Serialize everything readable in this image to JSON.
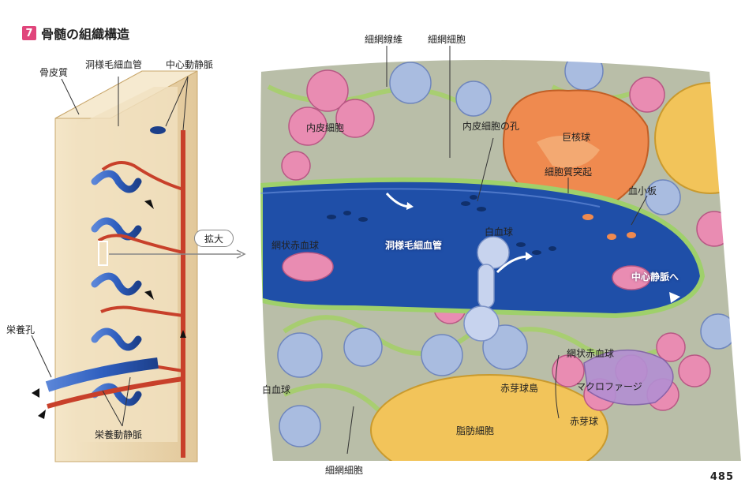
{
  "heading": {
    "number": "7",
    "title": "骨髄の組織構造"
  },
  "left_labels": {
    "cortical_bone": "骨皮質",
    "sinusoid_capillary": "洞様毛細血管",
    "central_artery_vein": "中心動静脈",
    "nutrient_foramen": "栄養孔",
    "nutrient_artery_vein": "栄養動静脈"
  },
  "enlarge_label": "拡大",
  "right_labels": {
    "reticular_fiber": "細網線維",
    "reticular_cell_top": "細網細胞",
    "endothelial_cell": "内皮細胞",
    "endothelial_pore": "内皮細胞の孔",
    "megakaryocyte": "巨核球",
    "cytoplasmic_process": "細胞質突起",
    "platelet": "血小板",
    "reticulocyte_left": "網状赤血球",
    "sinusoid_capillary": "洞様毛細血管",
    "leukocyte_center": "白血球",
    "to_central_vein": "中心静脈へ",
    "leukocyte_left": "白血球",
    "reticulocyte_right": "網状赤血球",
    "erythroblastic_island": "赤芽球島",
    "macrophage": "マクロファージ",
    "erythroblast": "赤芽球",
    "adipocyte": "脂肪細胞",
    "reticular_cell_bottom": "細網細胞"
  },
  "page_number": "485",
  "colors": {
    "badge": "#e0457b",
    "vessel_blue": "#2f5fbf",
    "artery_red": "#c8402a",
    "bone": "#ecd9b4",
    "lumen": "#1f4fa8",
    "stroma_green": "#a6cf6a",
    "megakaryocyte": "#ef8a4f",
    "adipocyte": "#f2c45a",
    "erythroid_pink": "#e98cb2",
    "leukocyte_blue": "#a9bce0"
  }
}
